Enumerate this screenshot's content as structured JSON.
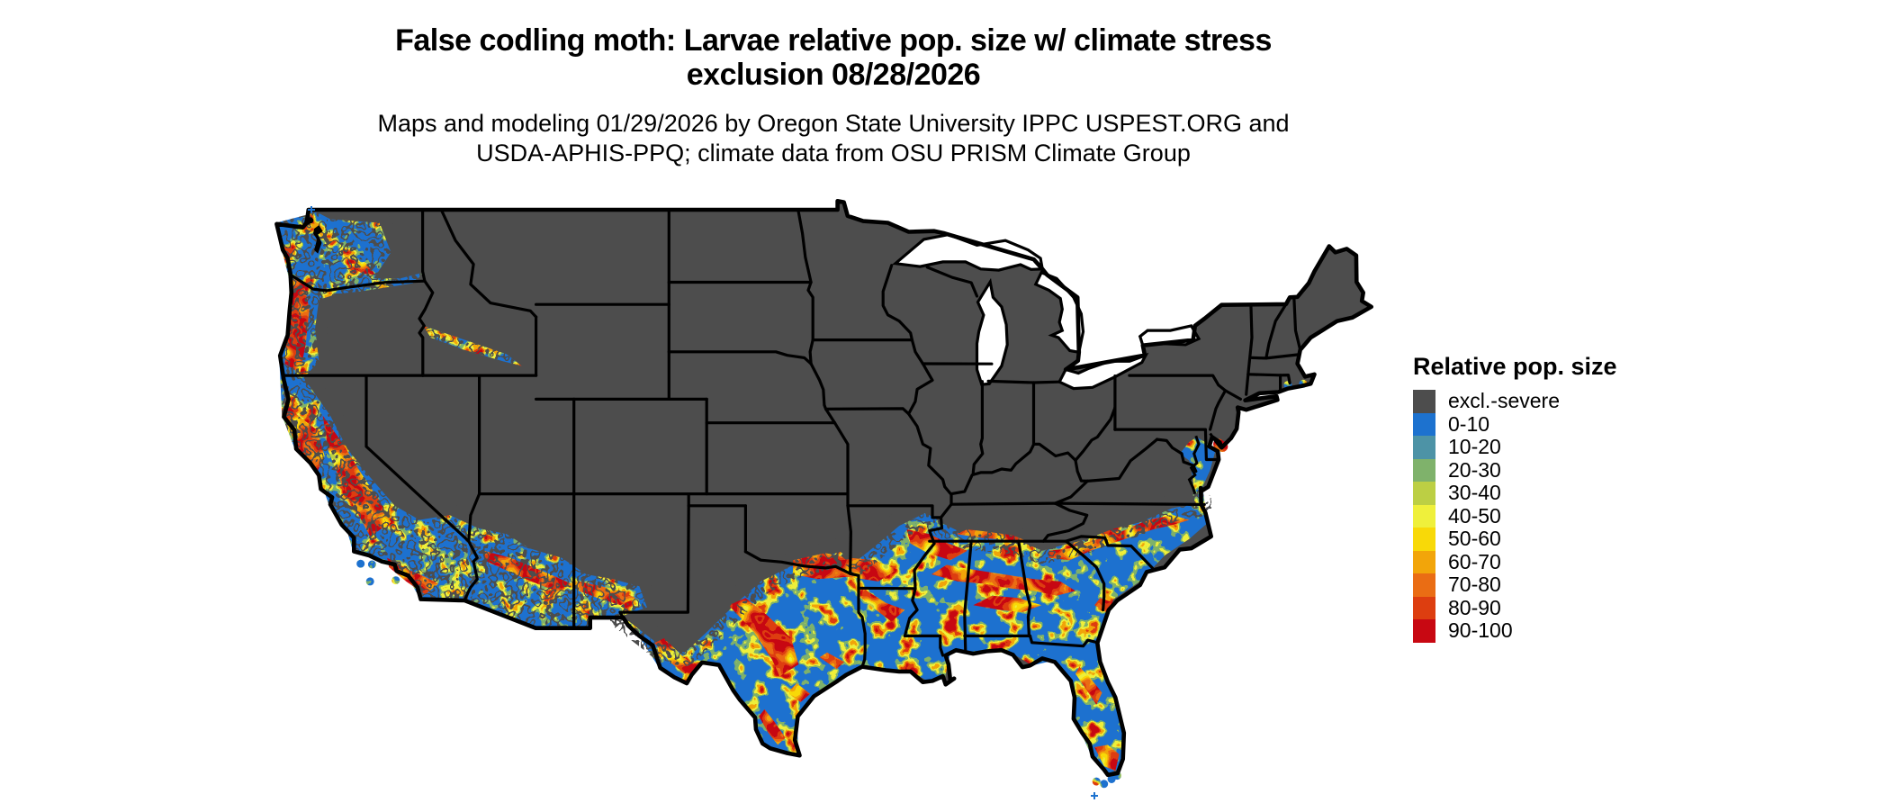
{
  "title": {
    "line1": "False codling moth: Larvae relative pop. size w/ climate stress",
    "line2": "exclusion 08/28/2026"
  },
  "subtitle": {
    "line1": "Maps and modeling 01/29/2026 by Oregon State University IPPC USPEST.ORG and",
    "line2": "USDA-APHIS-PPQ; climate data from OSU PRISM Climate Group"
  },
  "legend": {
    "title": "Relative pop. size",
    "items": [
      {
        "label": "excl.-severe",
        "color": "#4d4d4d"
      },
      {
        "label": "0-10",
        "color": "#1d72cf"
      },
      {
        "label": "10-20",
        "color": "#4d93a6"
      },
      {
        "label": "20-30",
        "color": "#7fb26b"
      },
      {
        "label": "30-40",
        "color": "#bccf44"
      },
      {
        "label": "40-50",
        "color": "#eff03b"
      },
      {
        "label": "50-60",
        "color": "#f8d908"
      },
      {
        "label": "60-70",
        "color": "#f2a50a"
      },
      {
        "label": "70-80",
        "color": "#ea6d14"
      },
      {
        "label": "80-90",
        "color": "#dd3e10"
      },
      {
        "label": "90-100",
        "color": "#c80812"
      }
    ]
  },
  "map": {
    "region": "Continental United States",
    "excluded_color": "#4d4d4d",
    "border_color": "#000000",
    "background_color": "#ffffff"
  }
}
